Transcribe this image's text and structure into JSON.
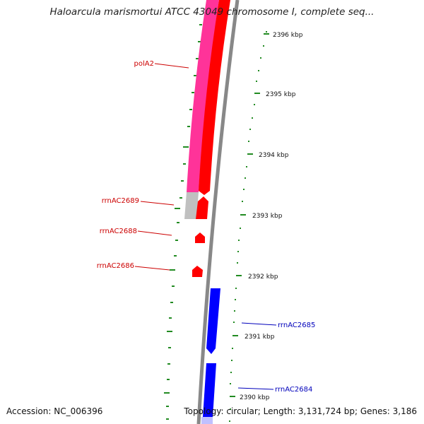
{
  "title": "Haloarcula marismortui ATCC 43049 chromosome I, complete seq...",
  "footer": {
    "accession": "Accession: NC_006396",
    "summary": "Topology: circular; Length: 3,131,724 bp; Genes: 3,186"
  },
  "scale_labels": [
    "2396 kbp",
    "2395 kbp",
    "2394 kbp",
    "2393 kbp",
    "2392 kbp",
    "2391 kbp",
    "2390 kbp"
  ],
  "genes": [
    {
      "label": "polA2",
      "color": "#cc0000"
    },
    {
      "label": "rrnAC2689",
      "color": "#cc0000"
    },
    {
      "label": "rrnAC2688",
      "color": "#cc0000"
    },
    {
      "label": "rrnAC2686",
      "color": "#cc0000"
    },
    {
      "label": "rrnAC2685",
      "color": "#0000bb"
    },
    {
      "label": "rrnAC2684",
      "color": "#0000bb"
    }
  ],
  "colors": {
    "forward_track": "#ff0000",
    "reverse_track": "#0000ff",
    "highlight_track": "#ff3399",
    "gray_track": "#c0c0c0",
    "backbone": "#888888",
    "ticks": "#228b22"
  }
}
